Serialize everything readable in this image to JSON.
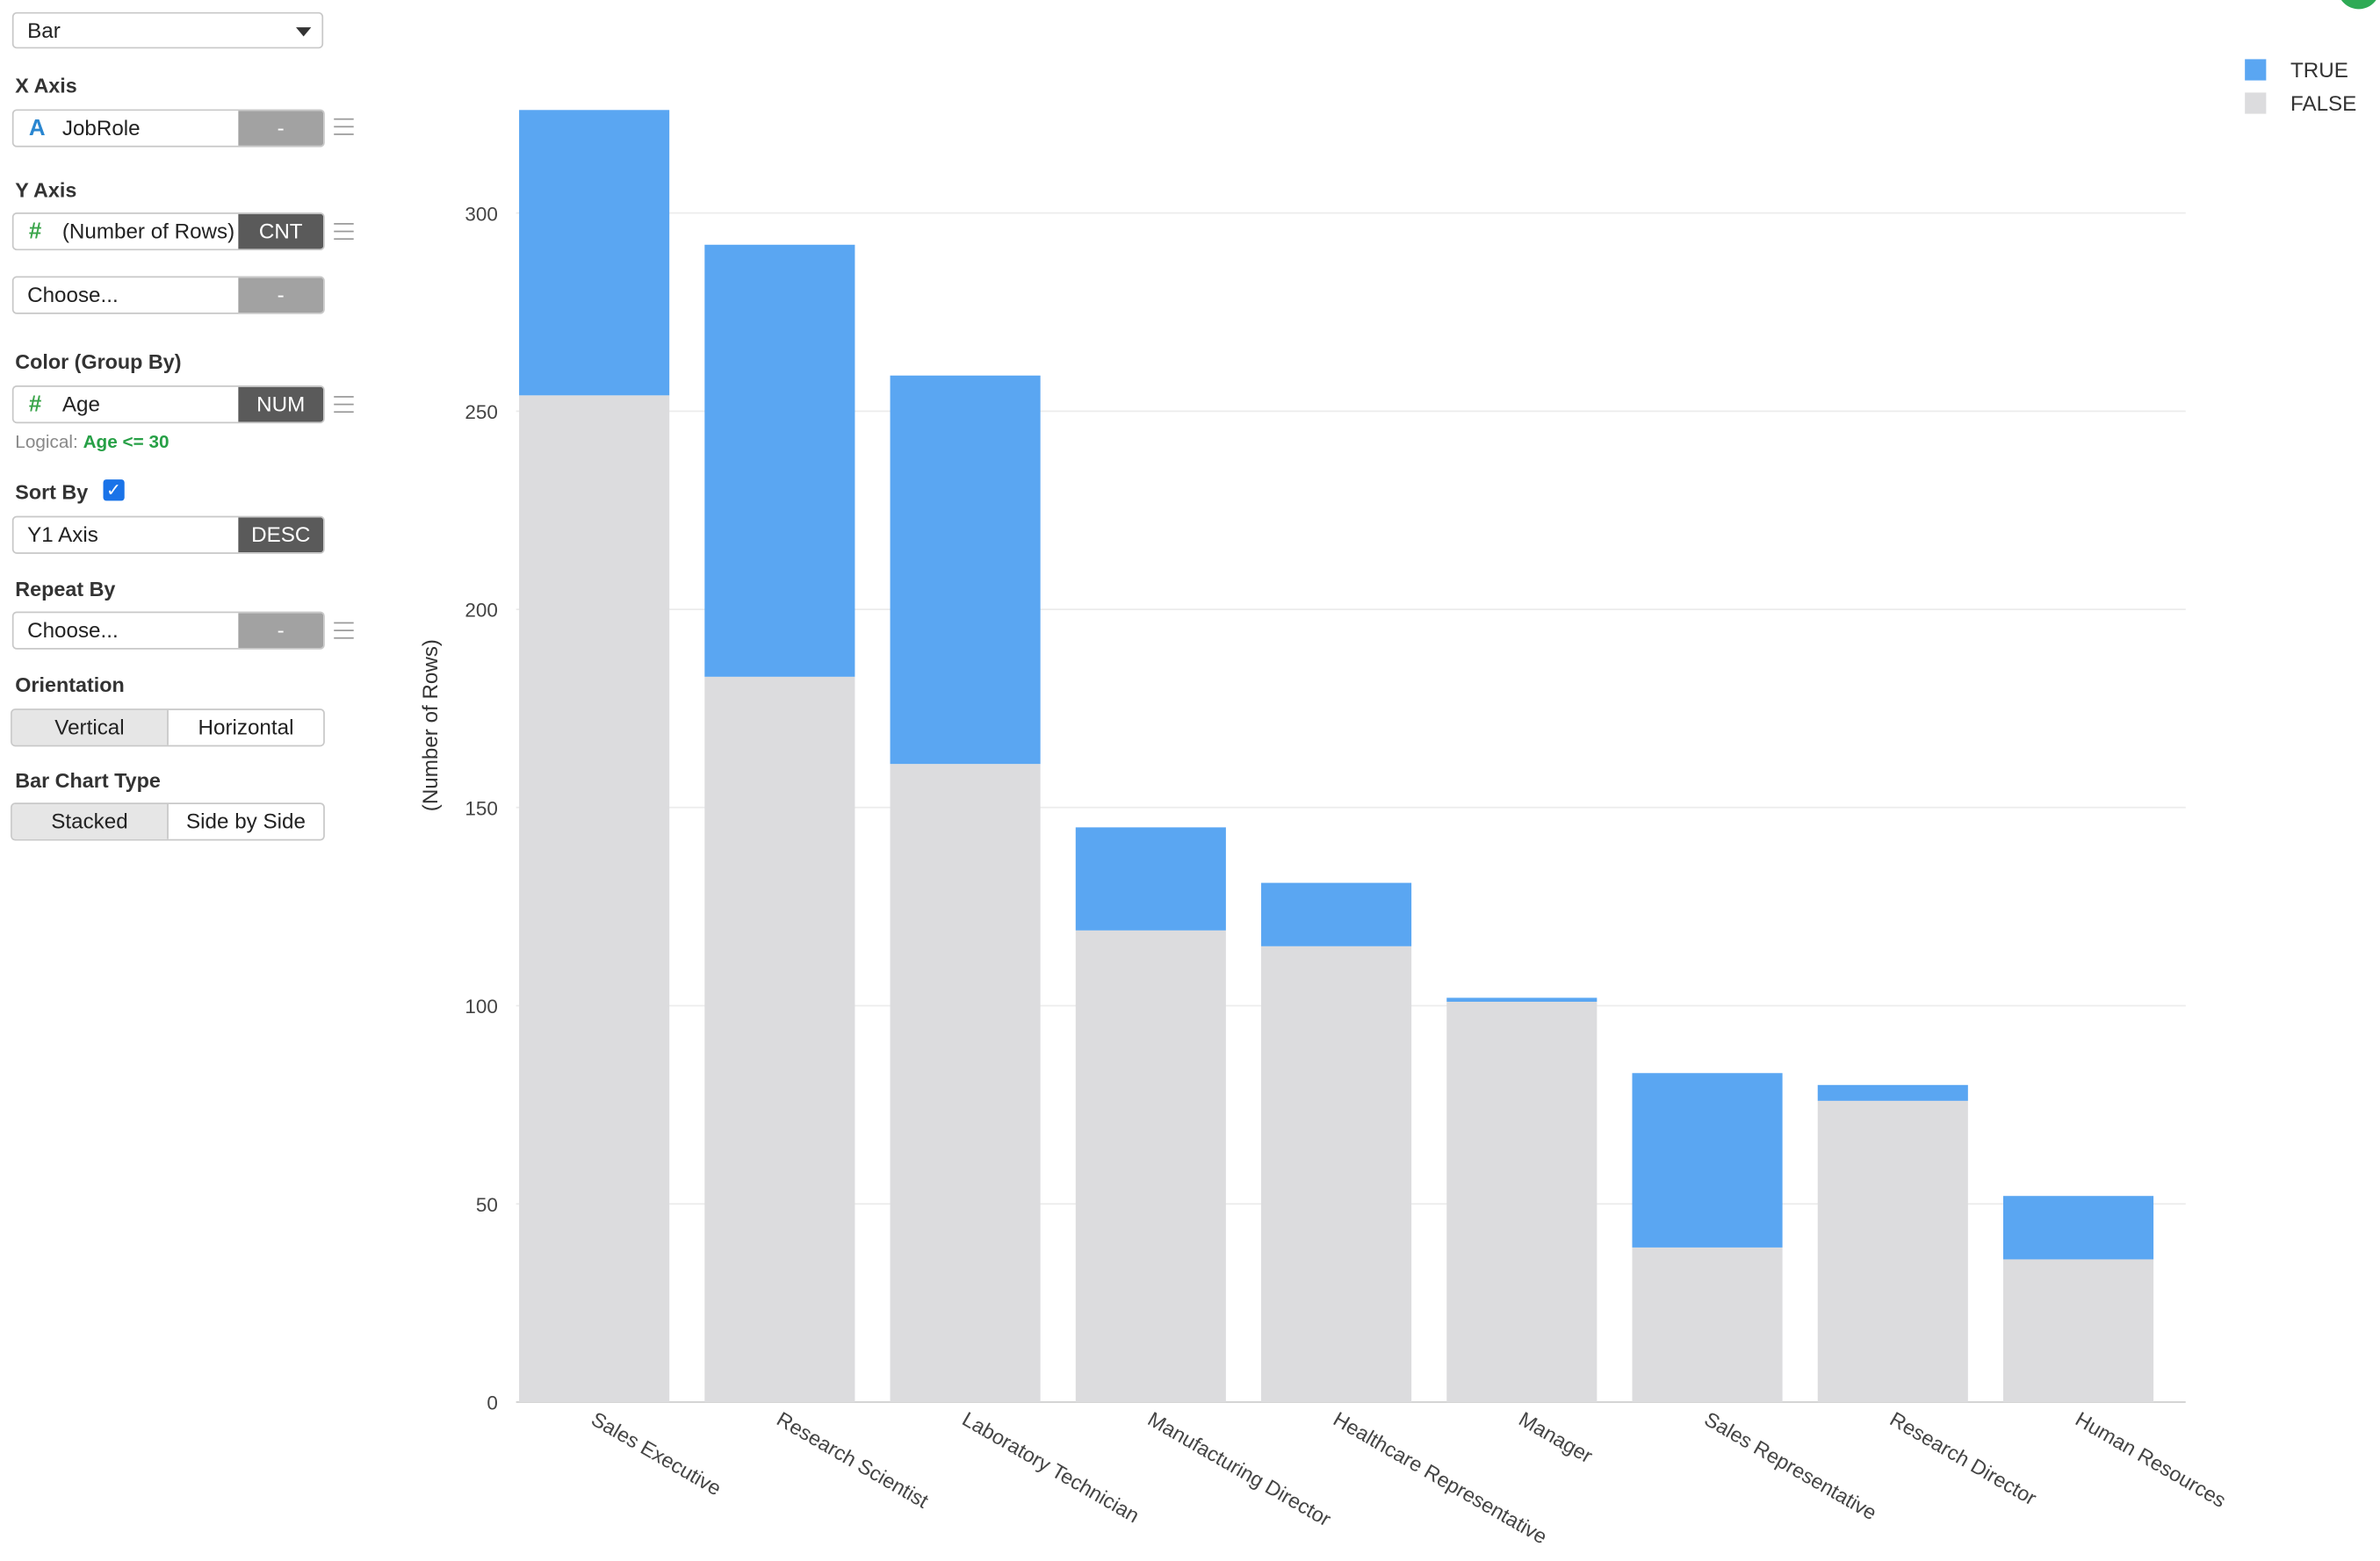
{
  "chart_type_select": {
    "value": "Bar"
  },
  "x_axis": {
    "label": "X Axis",
    "field": "JobRole",
    "button": "-"
  },
  "y_axis": {
    "label": "Y Axis",
    "field": "(Number of Rows)",
    "button": "CNT",
    "second_placeholder": "Choose...",
    "second_button": "-"
  },
  "color": {
    "label": "Color (Group By)",
    "field": "Age",
    "button": "NUM",
    "logical_prefix": "Logical:",
    "logical_value": "Age <= 30"
  },
  "sort": {
    "label": "Sort By",
    "checked": true,
    "field": "Y1 Axis",
    "button": "DESC"
  },
  "repeat": {
    "label": "Repeat By",
    "placeholder": "Choose...",
    "button": "-"
  },
  "orientation": {
    "label": "Orientation",
    "options": [
      "Vertical",
      "Horizontal"
    ],
    "selected": "Vertical"
  },
  "bar_type": {
    "label": "Bar Chart Type",
    "options": [
      "Stacked",
      "Side by Side"
    ],
    "selected": "Stacked"
  },
  "icons": {
    "text_field": "A",
    "number_field": "#",
    "check": "✓"
  },
  "colors": {
    "true": "#5aa6f2",
    "false": "#dcdcde",
    "accent_green": "#27a046"
  },
  "chart_data": {
    "type": "bar",
    "stacked": true,
    "categories": [
      "Sales Executive",
      "Research Scientist",
      "Laboratory Technician",
      "Manufacturing Director",
      "Healthcare Representative",
      "Manager",
      "Sales Representative",
      "Research Director",
      "Human Resources"
    ],
    "series": [
      {
        "name": "FALSE",
        "color": "#dcdcde",
        "values": [
          254,
          183,
          161,
          119,
          115,
          101,
          39,
          76,
          36
        ]
      },
      {
        "name": "TRUE",
        "color": "#5aa6f2",
        "values": [
          72,
          109,
          98,
          26,
          16,
          1,
          44,
          4,
          16
        ]
      }
    ],
    "ylabel": "(Number of Rows)",
    "xlabel": "",
    "ylim": [
      0,
      326
    ],
    "yticks": [
      0,
      50,
      100,
      150,
      200,
      250,
      300
    ],
    "grid": true,
    "legend": {
      "position": "top-right",
      "entries": [
        "TRUE",
        "FALSE"
      ]
    }
  }
}
